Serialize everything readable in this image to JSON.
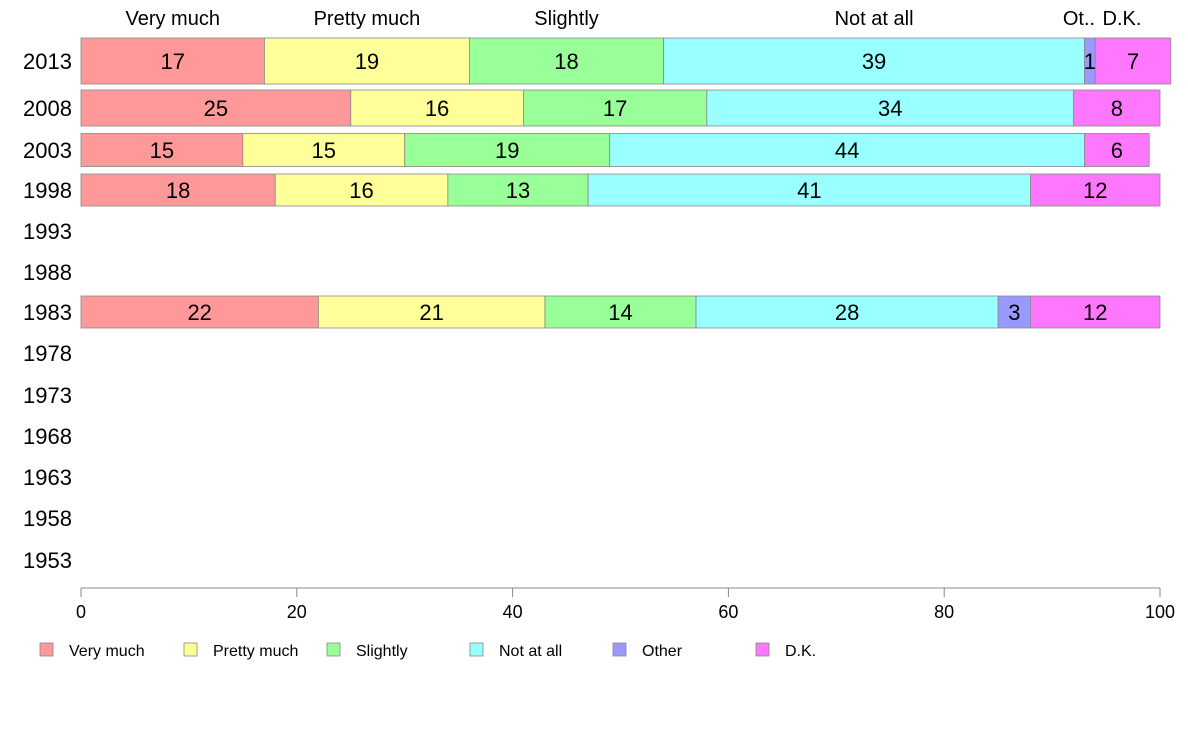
{
  "chart_data": {
    "type": "bar",
    "orientation": "horizontal",
    "stacked": true,
    "categories": [
      "2013",
      "2008",
      "2003",
      "1998",
      "1993",
      "1988",
      "1983",
      "1978",
      "1973",
      "1968",
      "1963",
      "1958",
      "1953"
    ],
    "series": [
      {
        "name": "Very much",
        "color": "#ff9999",
        "values": [
          17,
          25,
          15,
          18,
          null,
          null,
          22,
          null,
          null,
          null,
          null,
          null,
          null
        ]
      },
      {
        "name": "Pretty much",
        "color": "#ffff99",
        "values": [
          19,
          16,
          15,
          16,
          null,
          null,
          21,
          null,
          null,
          null,
          null,
          null,
          null
        ]
      },
      {
        "name": "Slightly",
        "color": "#99ff99",
        "values": [
          18,
          17,
          19,
          13,
          null,
          null,
          14,
          null,
          null,
          null,
          null,
          null,
          null
        ]
      },
      {
        "name": "Not at all",
        "color": "#99ffff",
        "values": [
          39,
          34,
          44,
          41,
          null,
          null,
          28,
          null,
          null,
          null,
          null,
          null,
          null
        ]
      },
      {
        "name": "Other",
        "color": "#9999ff",
        "values": [
          1,
          0,
          0,
          0,
          null,
          null,
          3,
          null,
          null,
          null,
          null,
          null,
          null
        ]
      },
      {
        "name": "D.K.",
        "color": "#ff77ff",
        "values": [
          7,
          8,
          6,
          12,
          null,
          null,
          12,
          null,
          null,
          null,
          null,
          null,
          null
        ]
      }
    ],
    "top_labels": [
      "Very much",
      "Pretty much",
      "Slightly",
      "Not at all",
      "Ot..",
      "D.K."
    ],
    "xlim": [
      0,
      100
    ],
    "xticks": [
      "0",
      "20",
      "40",
      "60",
      "80",
      "100"
    ],
    "grid": false,
    "legend_position": "bottom"
  }
}
